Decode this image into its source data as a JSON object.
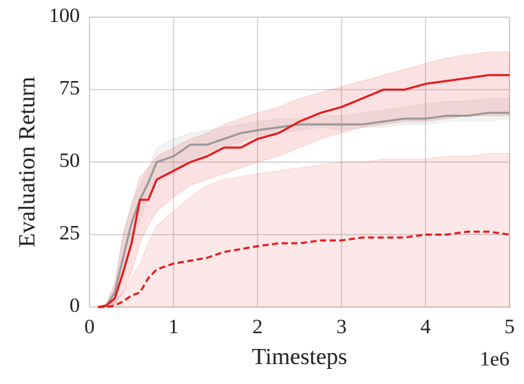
{
  "chart_data": {
    "type": "line",
    "xlabel": "Timesteps",
    "ylabel": "Evaluation Return",
    "x_offset_label": "1e6",
    "x": [
      0.1,
      0.2,
      0.3,
      0.4,
      0.5,
      0.6,
      0.7,
      0.8,
      1.0,
      1.2,
      1.4,
      1.6,
      1.8,
      2.0,
      2.25,
      2.5,
      2.75,
      3.0,
      3.25,
      3.5,
      3.75,
      4.0,
      4.25,
      4.5,
      4.75,
      5.0
    ],
    "xlim": [
      0,
      5
    ],
    "xticks": [
      0,
      1,
      2,
      3,
      4,
      5
    ],
    "ylim": [
      0,
      100
    ],
    "yticks": [
      0,
      25,
      50,
      75,
      100
    ],
    "grid": true,
    "series": [
      {
        "color": "#999999",
        "dash": false,
        "values": [
          0,
          0.5,
          5,
          17,
          29,
          37,
          43,
          50,
          52,
          56,
          56,
          58,
          60,
          61,
          62,
          63,
          63,
          63,
          63,
          64,
          65,
          65,
          66,
          66,
          67,
          67
        ],
        "lower": [
          0,
          0,
          1,
          10,
          22,
          30,
          38,
          44,
          46,
          50,
          52,
          55,
          57,
          59,
          60,
          61,
          62,
          61,
          62,
          62,
          63,
          63,
          64,
          64,
          64,
          65
        ],
        "upper": [
          0,
          1,
          8,
          25,
          36,
          42,
          48,
          55,
          58,
          60,
          61,
          62,
          63,
          64,
          65,
          65,
          66,
          66,
          67,
          68,
          69,
          70,
          71,
          71,
          72,
          72
        ]
      },
      {
        "color": "#e41a1c",
        "dash": false,
        "values": [
          0,
          0.5,
          3,
          12,
          22,
          37,
          37,
          44,
          47,
          50,
          52,
          55,
          55,
          58,
          60,
          64,
          67,
          69,
          72,
          75,
          75,
          77,
          78,
          79,
          80,
          80
        ],
        "lower": [
          0,
          0,
          1,
          5,
          12,
          22,
          28,
          33,
          38,
          42,
          44,
          46,
          48,
          50,
          52,
          55,
          58,
          60,
          62,
          63,
          64,
          64,
          65,
          66,
          66,
          66
        ],
        "upper": [
          0,
          1,
          8,
          25,
          35,
          45,
          48,
          52,
          55,
          58,
          60,
          63,
          65,
          67,
          69,
          72,
          74,
          76,
          78,
          80,
          82,
          84,
          86,
          87,
          88,
          88
        ]
      },
      {
        "color": "#e41a1c",
        "dash": true,
        "values": [
          0,
          0,
          0.5,
          2,
          4,
          5,
          10,
          13,
          15,
          16,
          17,
          19,
          20,
          21,
          22,
          22,
          23,
          23,
          24,
          24,
          24,
          25,
          25,
          26,
          26,
          25
        ],
        "lower": [
          0,
          0,
          0,
          0,
          0,
          0,
          0,
          0,
          0,
          0,
          0,
          0,
          0,
          0,
          0,
          0,
          0,
          0,
          0,
          0,
          0,
          0,
          0,
          0,
          0,
          0
        ],
        "upper": [
          0,
          1,
          2,
          5,
          10,
          15,
          22,
          28,
          33,
          38,
          42,
          44,
          45,
          46,
          47,
          48,
          49,
          50,
          50,
          51,
          51,
          51,
          52,
          52,
          53,
          53
        ]
      }
    ]
  }
}
